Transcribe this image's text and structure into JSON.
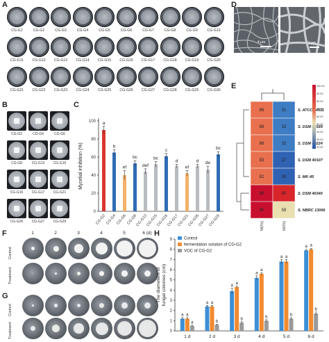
{
  "panels": {
    "a": "A",
    "b": "B",
    "c": "C",
    "d": "D",
    "e": "E",
    "f": "F",
    "g": "G",
    "h": "H"
  },
  "panelA": {
    "rows": [
      [
        "CG-G1",
        "CG-G2",
        "CG-G3",
        "CG-G4",
        "CG-G5",
        "CG-G6",
        "CG-G7",
        "CG-G8",
        "CG-G9",
        "CG-G10"
      ],
      [
        "CG-G11",
        "CG-G12",
        "CG-G13",
        "CG-G14",
        "CG-G15",
        "CG-G16",
        "CG-G17",
        "CG-G18",
        "CG-G19",
        "CG-G20"
      ],
      [
        "CG-G21",
        "CG-G22",
        "CG-G23",
        "CG-G24",
        "CG-G25",
        "CG-G26",
        "CG-G27",
        "CG-G28",
        "CG-G29",
        "CG-G30"
      ]
    ]
  },
  "panelB": {
    "rows": [
      [
        "CG-G2",
        "CG-G4",
        "CG-G6"
      ],
      [
        "CG-G8",
        "CG-G13",
        "CG-G15"
      ],
      [
        "CG-G16",
        "CG-G17",
        "CG-G21"
      ],
      [
        "CG-G26",
        "CG-G27",
        "CG-G29"
      ]
    ]
  },
  "panelD": {
    "scale_left": "4 μm",
    "scale_right": "1 μm"
  },
  "panelE": {
    "columns": [
      "ANI(%)",
      "dDDH(%)"
    ],
    "rows": [
      "S. ATCC 14511",
      "S. DSM 40189",
      "S. DSM 40224",
      "S. DSM 40107",
      "S. MK-45",
      "S. DSM 40340",
      "S. NBRC 13066"
    ],
    "ani": [
      86,
      86,
      86,
      83,
      82,
      99,
      95
    ],
    "ddh": [
      31,
      32,
      32,
      27,
      26,
      90,
      59
    ],
    "legend_ticks": [
      "100.00",
      "90.00",
      "80.00",
      "70.00",
      "60.00",
      "50.00",
      "40.00",
      "30.00",
      "20.00"
    ]
  },
  "panelF": {
    "cols": [
      "1",
      "2",
      "3",
      "4",
      "5",
      "6 (d)"
    ],
    "rows": [
      "Control",
      "Treatment"
    ]
  },
  "panelG": {
    "rows": [
      "Control",
      "Treatment"
    ]
  },
  "chart_data": [
    {
      "type": "bar",
      "panel": "C",
      "ylabel": "Mycelial inhibition (%)",
      "ylim": [
        0,
        100
      ],
      "yticks": [
        "0",
        "20",
        "40",
        "60",
        "80",
        "100"
      ],
      "categories": [
        "CG-G2",
        "CG-G4",
        "CG-G6",
        "CG-G8",
        "CG-G13",
        "CG-G15",
        "CG-G16",
        "CG-G17",
        "CG-G21",
        "CG-G26",
        "CG-G27",
        "CG-G29"
      ],
      "values": [
        90,
        65,
        40,
        53,
        44,
        52,
        61,
        50,
        42,
        50,
        46,
        63
      ],
      "errors": [
        4,
        3,
        5,
        3,
        3,
        3,
        3,
        2,
        3,
        2,
        4,
        3
      ],
      "letters": [
        "a",
        "b",
        "ef",
        "bc",
        "def",
        "bc",
        "c",
        "d",
        "ef",
        "d",
        "de",
        "bc"
      ],
      "colors": [
        "#d9372f",
        "#2f6db5",
        "#f2b26b",
        "#2f6db5",
        "#b8bcc0",
        "#b8bcc0",
        "#2f6db5",
        "#b8bcc0",
        "#f2b26b",
        "#b8bcc0",
        "#b8bcc0",
        "#2f6db5"
      ]
    },
    {
      "type": "bar",
      "panel": "H",
      "ylabel_line1": "The diameters of",
      "ylabel_line2": "fungal colonies  (cm)",
      "ylim": [
        0,
        9
      ],
      "yticks": [
        "0",
        "1",
        "2",
        "3",
        "4",
        "5",
        "6",
        "7",
        "8",
        "9"
      ],
      "categories": [
        "1 d",
        "2 d",
        "3 d",
        "4 d",
        "5 d",
        "6 d"
      ],
      "series": [
        {
          "name": "Control",
          "color": "#3d8fd6",
          "values": [
            1.2,
            2.4,
            3.9,
            5.2,
            6.8,
            7.9
          ],
          "errors": [
            0.1,
            0.1,
            0.3,
            0.2,
            0.2,
            0.1
          ]
        },
        {
          "name": "fermentation solution of CG-G2",
          "color": "#f28a2f",
          "values": [
            1.2,
            2.4,
            4.3,
            5.6,
            6.8,
            8.0
          ],
          "errors": [
            0.1,
            0.1,
            0.1,
            0.1,
            0.2,
            0.1
          ]
        },
        {
          "name": "VOC of CG-G2",
          "color": "#9a9a9a",
          "values": [
            0.5,
            0.6,
            0.8,
            1.0,
            1.2,
            1.7
          ],
          "errors": [
            0.05,
            0.05,
            0.1,
            0.1,
            0.1,
            0.15
          ]
        }
      ],
      "letters": [
        [
          "a",
          "a",
          "a"
        ],
        [
          "a",
          "a",
          "b"
        ],
        [
          "a",
          "a",
          "b"
        ],
        [
          "a",
          "a",
          "b"
        ],
        [
          "a",
          "a",
          "b"
        ],
        [
          "a",
          "a",
          "b"
        ]
      ]
    }
  ]
}
